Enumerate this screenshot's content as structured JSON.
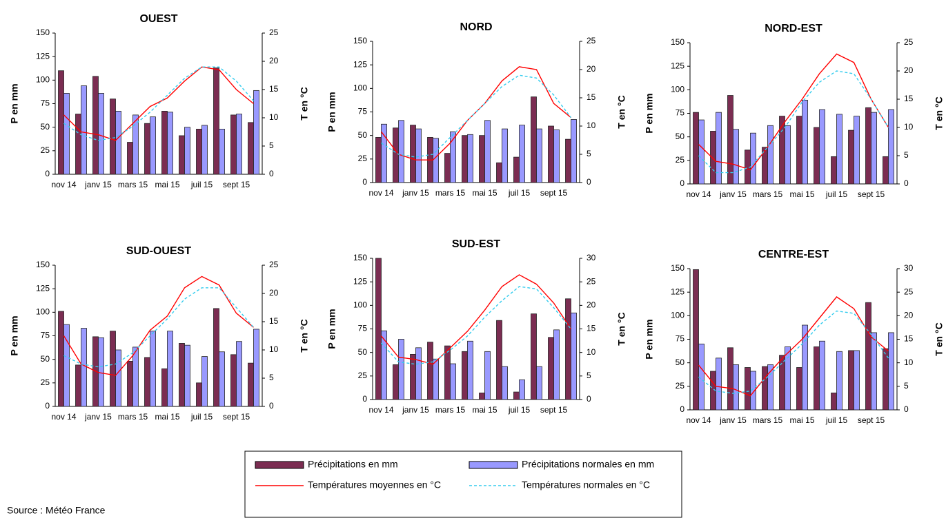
{
  "chart_data": [
    {
      "type": "combo",
      "title": "OUEST",
      "ylabel": "P en mm",
      "y2label": "T en °C",
      "categories": [
        "nov 14",
        null,
        "janv 15",
        null,
        "mars 15",
        null,
        "mai 15",
        null,
        "juil 15",
        null,
        "sept 15",
        null
      ],
      "series": [
        {
          "values": [
            110,
            64,
            104,
            80,
            34,
            54,
            67,
            41,
            48,
            113,
            63,
            55
          ]
        },
        {
          "values": [
            86,
            94,
            86,
            67,
            63,
            61,
            66,
            50,
            52,
            48,
            64,
            89
          ]
        },
        {
          "values": [
            10.5,
            7.5,
            7,
            6,
            9,
            12,
            13.5,
            16.5,
            19,
            18.5,
            15,
            12.5
          ],
          "axis": "y2"
        },
        {
          "values": [
            9,
            7,
            6,
            6.5,
            8.5,
            11,
            14,
            17,
            19,
            19,
            16.5,
            13
          ],
          "axis": "y2"
        }
      ],
      "ylim": [
        0,
        150
      ],
      "yticks": [
        0,
        25,
        50,
        75,
        100,
        125,
        150
      ],
      "y2lim": [
        0,
        25
      ],
      "y2ticks": [
        0,
        5,
        10,
        15,
        20,
        25
      ]
    },
    {
      "type": "combo",
      "title": "NORD",
      "ylabel": "P en mm",
      "y2label": "T en °C",
      "categories": [
        "nov 14",
        null,
        "janv 15",
        null,
        "mars 15",
        null,
        "mai 15",
        null,
        "juil 15",
        null,
        "sept 15",
        null
      ],
      "series": [
        {
          "values": [
            48,
            58,
            61,
            48,
            31,
            50,
            50,
            21,
            27,
            91,
            60,
            46
          ]
        },
        {
          "values": [
            62,
            66,
            57,
            47,
            54,
            51,
            66,
            57,
            61,
            57,
            56,
            67
          ]
        },
        {
          "values": [
            9,
            5,
            4,
            4,
            7,
            11,
            14,
            18,
            20.5,
            20,
            14,
            11.5
          ],
          "axis": "y2"
        },
        {
          "values": [
            7,
            5,
            4.5,
            5,
            8,
            11,
            14,
            17,
            19,
            18.5,
            15.5,
            11.5
          ],
          "axis": "y2"
        }
      ],
      "ylim": [
        0,
        150
      ],
      "yticks": [
        0,
        25,
        50,
        75,
        100,
        125,
        150
      ],
      "y2lim": [
        0,
        25
      ],
      "y2ticks": [
        0,
        5,
        10,
        15,
        20,
        25
      ]
    },
    {
      "type": "combo",
      "title": "NORD-EST",
      "ylabel": "P en mm",
      "y2label": "T en °C",
      "categories": [
        "nov 14",
        null,
        "janv 15",
        null,
        "mars 15",
        null,
        "mai 15",
        null,
        "juil 15",
        null,
        "sept 15",
        null
      ],
      "series": [
        {
          "values": [
            76,
            56,
            94,
            36,
            39,
            72,
            72,
            60,
            29,
            57,
            81,
            29
          ]
        },
        {
          "values": [
            68,
            76,
            58,
            54,
            62,
            62,
            89,
            79,
            74,
            72,
            76,
            79
          ]
        },
        {
          "values": [
            7,
            4,
            3.5,
            2.5,
            6.5,
            11,
            15,
            19.5,
            23,
            21.5,
            15,
            10
          ],
          "axis": "y2"
        },
        {
          "values": [
            5,
            2,
            2,
            3,
            6.5,
            10,
            14.5,
            18,
            20,
            19.5,
            15,
            10
          ],
          "axis": "y2"
        }
      ],
      "ylim": [
        0,
        150
      ],
      "yticks": [
        0,
        25,
        50,
        75,
        100,
        125,
        150
      ],
      "y2lim": [
        0,
        25
      ],
      "y2ticks": [
        0,
        5,
        10,
        15,
        20,
        25
      ]
    },
    {
      "type": "combo",
      "title": "SUD-OUEST",
      "ylabel": "P en mm",
      "y2label": "T en °C",
      "categories": [
        "nov 14",
        null,
        "janv 15",
        null,
        "mars 15",
        null,
        "mai 15",
        null,
        "juil 15",
        null,
        "sept 15",
        null
      ],
      "series": [
        {
          "values": [
            101,
            44,
            74,
            80,
            48,
            52,
            40,
            67,
            25,
            104,
            55,
            46
          ]
        },
        {
          "values": [
            87,
            83,
            73,
            60,
            63,
            80,
            80,
            65,
            53,
            58,
            69,
            82
          ]
        },
        {
          "values": [
            12.5,
            7.5,
            6,
            5.5,
            9,
            13.5,
            16,
            21,
            23,
            21.5,
            16.5,
            14
          ],
          "axis": "y2"
        },
        {
          "values": [
            9,
            7.5,
            7,
            7.5,
            9.5,
            12.5,
            15.5,
            19,
            21,
            21,
            17.5,
            14
          ],
          "axis": "y2"
        }
      ],
      "ylim": [
        0,
        150
      ],
      "yticks": [
        0,
        25,
        50,
        75,
        100,
        125,
        150
      ],
      "y2lim": [
        0,
        25
      ],
      "y2ticks": [
        0,
        5,
        10,
        15,
        20,
        25
      ]
    },
    {
      "type": "combo",
      "title": "SUD-EST",
      "ylabel": "P en mm",
      "y2label": "T en °C",
      "categories": [
        "nov 14",
        null,
        "janv 15",
        null,
        "mars 15",
        null,
        "mai 15",
        null,
        "juil 15",
        null,
        "sept 15",
        null
      ],
      "series": [
        {
          "values": [
            150,
            37,
            48,
            61,
            57,
            51,
            7,
            84,
            8,
            91,
            66,
            107
          ]
        },
        {
          "values": [
            73,
            64,
            55,
            43,
            38,
            62,
            51,
            35,
            21,
            35,
            74,
            92
          ]
        },
        {
          "values": [
            13.5,
            9,
            8.5,
            7.5,
            11,
            14.5,
            19,
            24,
            26.5,
            24.5,
            20.5,
            15
          ],
          "axis": "y2"
        },
        {
          "values": [
            12,
            8,
            7.5,
            8,
            10.5,
            13.5,
            17.5,
            21,
            24,
            23.5,
            19.5,
            15
          ],
          "axis": "y2"
        }
      ],
      "ylim": [
        0,
        150
      ],
      "yticks": [
        0,
        25,
        50,
        75,
        100,
        125,
        150
      ],
      "y2lim": [
        0,
        30
      ],
      "y2ticks": [
        0,
        5,
        10,
        15,
        20,
        25,
        30
      ]
    },
    {
      "type": "combo",
      "title": "CENTRE-EST",
      "ylabel": "P en mm",
      "y2label": "T en °C",
      "categories": [
        "nov 14",
        null,
        "janv 15",
        null,
        "mars 15",
        null,
        "mai 15",
        null,
        "juil 15",
        null,
        "sept 15",
        null
      ],
      "series": [
        {
          "values": [
            149,
            41,
            66,
            45,
            46,
            58,
            45,
            67,
            18,
            63,
            114,
            65
          ]
        },
        {
          "values": [
            70,
            55,
            48,
            41,
            48,
            67,
            90,
            73,
            62,
            63,
            82,
            82
          ]
        },
        {
          "values": [
            9.5,
            5,
            4.5,
            3,
            7.5,
            11.5,
            15,
            19.5,
            24,
            21.5,
            15.5,
            12.5
          ],
          "axis": "y2"
        },
        {
          "values": [
            7,
            4,
            3.5,
            4,
            7,
            10.5,
            14,
            18,
            21,
            20.5,
            16,
            11
          ],
          "axis": "y2"
        }
      ],
      "ylim": [
        0,
        150
      ],
      "yticks": [
        0,
        25,
        50,
        75,
        100,
        125,
        150
      ],
      "y2lim": [
        0,
        30
      ],
      "y2ticks": [
        0,
        5,
        10,
        15,
        20,
        25,
        30
      ]
    }
  ],
  "legend": [
    {
      "name": "Précipitations en mm",
      "color": "#7b2d52",
      "kind": "bar"
    },
    {
      "name": "Précipitations normales en mm",
      "color": "#9999ff",
      "kind": "bar"
    },
    {
      "name": "Températures moyennes en °C",
      "color": "#ff0000",
      "kind": "line"
    },
    {
      "name": "Températures normales en °C",
      "color": "#33ccee",
      "kind": "dashed"
    }
  ],
  "source": "Source : Météo France"
}
